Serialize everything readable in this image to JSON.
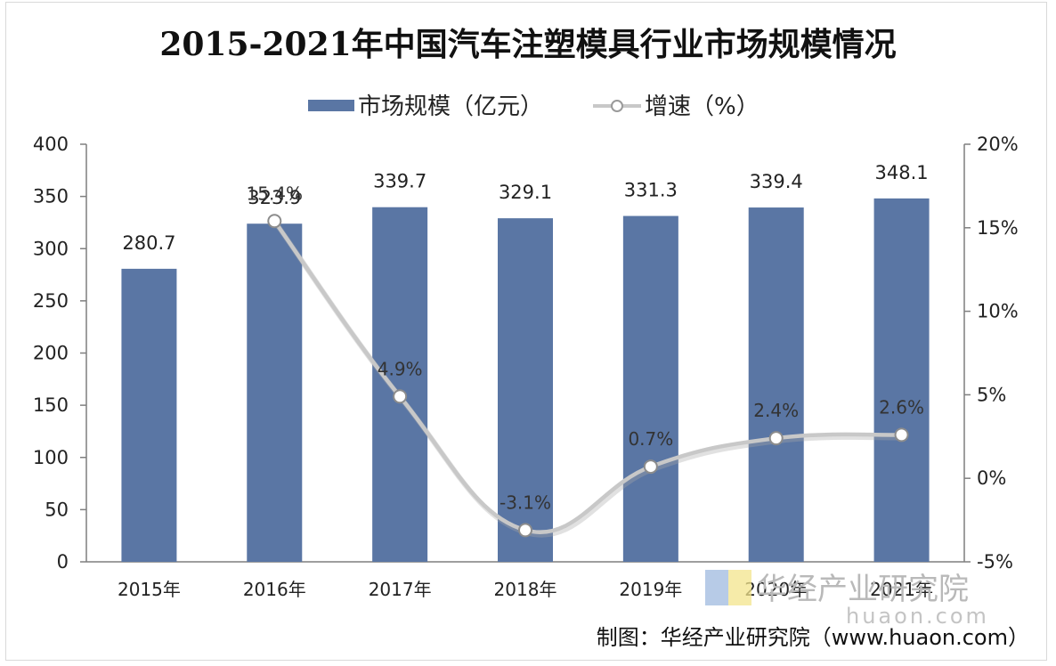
{
  "chart_data": {
    "type": "bar",
    "title": "2015-2021年中国汽车注塑模具行业市场规模情况",
    "categories": [
      "2015年",
      "2016年",
      "2017年",
      "2018年",
      "2019年",
      "2020年",
      "2021年"
    ],
    "series": [
      {
        "name": "市场规模（亿元）",
        "type": "bar",
        "axis": "left",
        "values": [
          280.7,
          323.9,
          339.7,
          329.1,
          331.3,
          339.4,
          348.1
        ],
        "labels": [
          "280.7",
          "323.9",
          "339.7",
          "329.1",
          "331.3",
          "339.4",
          "348.1"
        ]
      },
      {
        "name": "增速（%）",
        "type": "line",
        "axis": "right",
        "values": [
          null,
          15.4,
          4.9,
          -3.1,
          0.7,
          2.4,
          2.6
        ],
        "labels": [
          "",
          "15.4%",
          "4.9%",
          "-3.1%",
          "0.7%",
          "2.4%",
          "2.6%"
        ]
      }
    ],
    "y_left": {
      "ylim": [
        0,
        400
      ],
      "ticks": [
        "0",
        "50",
        "100",
        "150",
        "200",
        "250",
        "300",
        "350",
        "400"
      ]
    },
    "y_right": {
      "ylim": [
        -5,
        20
      ],
      "ticks": [
        "-5%",
        "0%",
        "5%",
        "10%",
        "15%",
        "20%"
      ]
    },
    "legend": "top-center",
    "grid": false
  },
  "colors": {
    "bar": "#5a76a4",
    "line": "#c8c8c8",
    "axis": "#7f7f7f"
  },
  "watermark": {
    "text": "华经产业研究院",
    "url": "huaon.com"
  },
  "source": "制图：华经产业研究院（www.huaon.com）"
}
